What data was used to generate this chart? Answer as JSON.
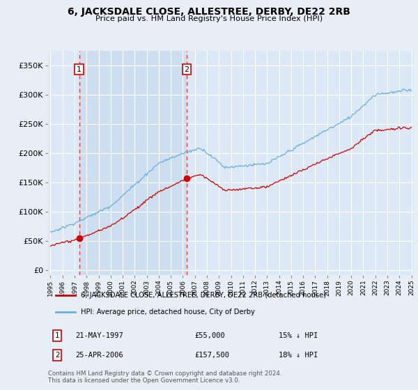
{
  "title": "6, JACKSDALE CLOSE, ALLESTREE, DERBY, DE22 2RB",
  "subtitle": "Price paid vs. HM Land Registry's House Price Index (HPI)",
  "x_start_year": 1995,
  "x_end_year": 2025,
  "y_ticks": [
    0,
    50000,
    100000,
    150000,
    200000,
    250000,
    300000,
    350000
  ],
  "y_tick_labels": [
    "£0",
    "£50K",
    "£100K",
    "£150K",
    "£200K",
    "£250K",
    "£300K",
    "£350K"
  ],
  "y_lim": [
    -8000,
    375000
  ],
  "sale1_year": 1997.38,
  "sale1_price": 55000,
  "sale1_label": "1",
  "sale1_date": "21-MAY-1997",
  "sale1_pct": "15% ↓ HPI",
  "sale2_year": 2006.32,
  "sale2_price": 157500,
  "sale2_label": "2",
  "sale2_date": "25-APR-2006",
  "sale2_pct": "18% ↓ HPI",
  "hpi_color": "#6aaee0",
  "price_color": "#cc0000",
  "dashed_color": "#ee4444",
  "shade_color": "#ddeeff",
  "bg_color": "#e8eef5",
  "plot_bg": "#dce8f5",
  "grid_color": "#ffffff",
  "legend_label_price": "6, JACKSDALE CLOSE, ALLESTREE, DERBY, DE22 2RB (detached house)",
  "legend_label_hpi": "HPI: Average price, detached house, City of Derby",
  "footer": "Contains HM Land Registry data © Crown copyright and database right 2024.\nThis data is licensed under the Open Government Licence v3.0."
}
